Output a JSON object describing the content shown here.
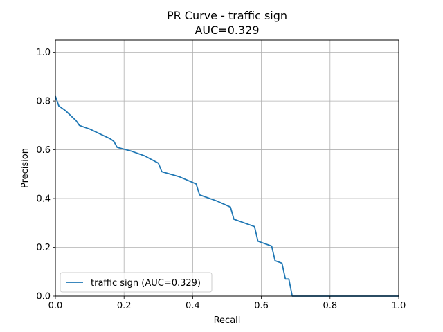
{
  "chart_data": {
    "type": "line",
    "title": "PR Curve - traffic sign",
    "subtitle": "AUC=0.329",
    "xlabel": "Recall",
    "ylabel": "Precision",
    "xlim": [
      0.0,
      1.0
    ],
    "ylim": [
      0.0,
      1.05
    ],
    "xticks": [
      "0.0",
      "0.2",
      "0.4",
      "0.6",
      "0.8",
      "1.0"
    ],
    "yticks": [
      "0.0",
      "0.2",
      "0.4",
      "0.6",
      "0.8",
      "1.0"
    ],
    "grid": true,
    "legend_position": "lower-left",
    "colors": {
      "series": "#1f77b4",
      "grid": "#b0b0b0"
    },
    "series": [
      {
        "name": "traffic sign (AUC=0.329)",
        "x": [
          0.0,
          0.01,
          0.03,
          0.06,
          0.07,
          0.1,
          0.13,
          0.16,
          0.17,
          0.18,
          0.22,
          0.26,
          0.3,
          0.31,
          0.36,
          0.41,
          0.42,
          0.47,
          0.51,
          0.52,
          0.58,
          0.59,
          0.63,
          0.64,
          0.66,
          0.67,
          0.68,
          0.69,
          0.7,
          1.0
        ],
        "y": [
          0.82,
          0.78,
          0.76,
          0.72,
          0.7,
          0.685,
          0.665,
          0.645,
          0.635,
          0.61,
          0.595,
          0.575,
          0.545,
          0.51,
          0.49,
          0.46,
          0.415,
          0.39,
          0.365,
          0.315,
          0.285,
          0.225,
          0.205,
          0.145,
          0.135,
          0.07,
          0.07,
          0.0,
          0.0,
          0.0
        ]
      }
    ]
  }
}
